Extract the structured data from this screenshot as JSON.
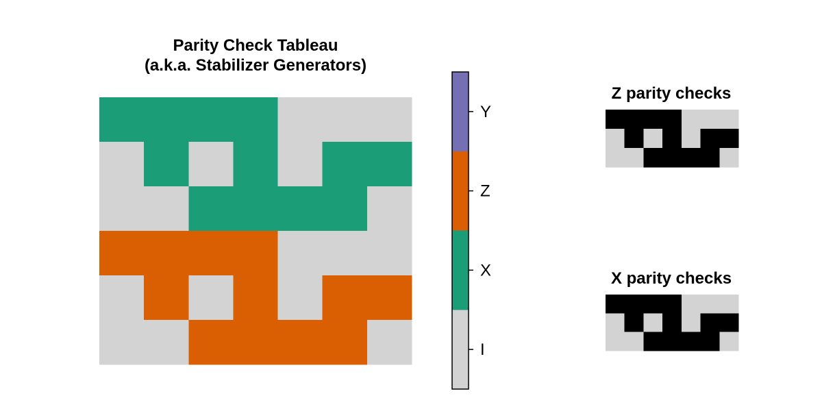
{
  "tableau": {
    "title_line1": "Parity Check Tableau",
    "title_line2": "(a.k.a. Stabilizer Generators)",
    "matrix": [
      [
        1,
        1,
        1,
        1,
        0,
        0,
        0
      ],
      [
        0,
        1,
        0,
        1,
        0,
        1,
        1
      ],
      [
        0,
        0,
        1,
        1,
        1,
        1,
        0
      ],
      [
        2,
        2,
        2,
        2,
        0,
        0,
        0
      ],
      [
        0,
        2,
        0,
        2,
        0,
        2,
        2
      ],
      [
        0,
        0,
        2,
        2,
        2,
        2,
        0
      ]
    ]
  },
  "colorbar": {
    "labels": [
      "I",
      "X",
      "Z",
      "Y"
    ],
    "colors": [
      "#d3d3d3",
      "#1b9e77",
      "#d95f02",
      "#7570b3"
    ]
  },
  "z_checks": {
    "title": "Z parity checks",
    "matrix": [
      [
        1,
        1,
        1,
        1,
        0,
        0,
        0
      ],
      [
        0,
        1,
        0,
        1,
        0,
        1,
        1
      ],
      [
        0,
        0,
        1,
        1,
        1,
        1,
        0
      ]
    ]
  },
  "x_checks": {
    "title": "X parity checks",
    "matrix": [
      [
        1,
        1,
        1,
        1,
        0,
        0,
        0
      ],
      [
        0,
        1,
        0,
        1,
        0,
        1,
        1
      ],
      [
        0,
        0,
        1,
        1,
        1,
        1,
        0
      ]
    ]
  },
  "binary_colors": {
    "zero": "#d3d3d3",
    "one": "#000000"
  }
}
